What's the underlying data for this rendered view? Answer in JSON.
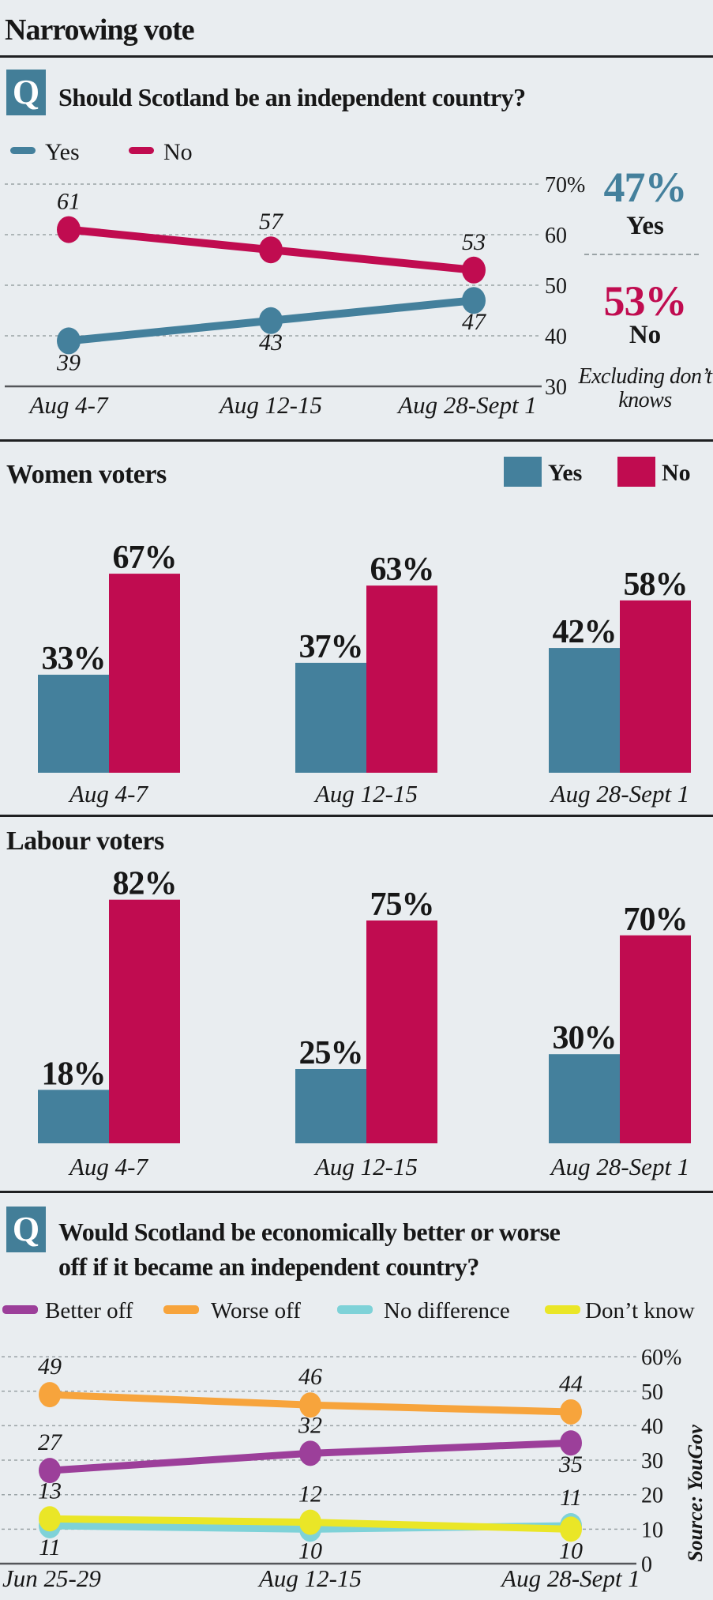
{
  "page": {
    "title": "Narrowing vote",
    "source": "Source: YouGov"
  },
  "colors": {
    "yes": "#44809c",
    "no": "#c00c50",
    "better_off": "#9c3f9a",
    "worse_off": "#f7a43c",
    "no_difference": "#7ed2d8",
    "dont_know": "#eae627",
    "badge": "#437e98",
    "grid": "#9aa3a6",
    "axis": "#54565a"
  },
  "q1": {
    "badge": "Q",
    "question": "Should Scotland be an independent country?",
    "legend": [
      {
        "label": "Yes"
      },
      {
        "label": "No"
      }
    ],
    "summary": {
      "yes_pct": "47%",
      "yes_label": "Yes",
      "no_pct": "53%",
      "no_label": "No",
      "note": "Excluding don’t knows"
    }
  },
  "women": {
    "heading": "Women voters",
    "legend": [
      {
        "label": "Yes"
      },
      {
        "label": "No"
      }
    ]
  },
  "labour": {
    "heading": "Labour voters"
  },
  "q2": {
    "badge": "Q",
    "question_line1": "Would Scotland be economically better or worse",
    "question_line2": "off if it became an independent country?",
    "legend": [
      {
        "label": "Better off"
      },
      {
        "label": "Worse off"
      },
      {
        "label": "No difference"
      },
      {
        "label": "Don’t know"
      }
    ]
  },
  "chart_data": [
    {
      "id": "referendum-trend",
      "type": "line",
      "title": "Should Scotland be an independent country?",
      "categories": [
        "Aug 4-7",
        "Aug 12-15",
        "Aug 28-Sept 1"
      ],
      "series": [
        {
          "name": "No",
          "color": "#c00c50",
          "values": [
            61,
            57,
            53
          ],
          "label_pos": [
            "above",
            "above",
            "above"
          ]
        },
        {
          "name": "Yes",
          "color": "#44809c",
          "values": [
            39,
            43,
            47
          ],
          "label_pos": [
            "below",
            "below",
            "below"
          ]
        }
      ],
      "ylim": [
        30,
        70
      ],
      "yticks": [
        30,
        40,
        50,
        60,
        70
      ],
      "ytick_labels": [
        "30",
        "40",
        "50",
        "60",
        "70%"
      ],
      "grid": "dashed",
      "axis_side": "right",
      "legend_position": "top-left",
      "note": "Excluding don’t knows",
      "final_summary": {
        "Yes": "47%",
        "No": "53%"
      }
    },
    {
      "id": "women-voters",
      "type": "bar",
      "title": "Women voters",
      "categories": [
        "Aug 4-7",
        "Aug 12-15",
        "Aug 28-Sept 1"
      ],
      "series": [
        {
          "name": "Yes",
          "color": "#44809c",
          "values": [
            33,
            37,
            42
          ],
          "labels": [
            "33%",
            "37%",
            "42%"
          ]
        },
        {
          "name": "No",
          "color": "#c00c50",
          "values": [
            67,
            63,
            58
          ],
          "labels": [
            "67%",
            "63%",
            "58%"
          ]
        }
      ],
      "ylim": [
        0,
        100
      ],
      "grid": "off"
    },
    {
      "id": "labour-voters",
      "type": "bar",
      "title": "Labour voters",
      "categories": [
        "Aug 4-7",
        "Aug 12-15",
        "Aug 28-Sept 1"
      ],
      "series": [
        {
          "name": "Yes",
          "color": "#44809c",
          "values": [
            18,
            25,
            30
          ],
          "labels": [
            "18%",
            "25%",
            "30%"
          ]
        },
        {
          "name": "No",
          "color": "#c00c50",
          "values": [
            82,
            75,
            70
          ],
          "labels": [
            "82%",
            "75%",
            "70%"
          ]
        }
      ],
      "ylim": [
        0,
        100
      ],
      "grid": "off"
    },
    {
      "id": "economy-trend",
      "type": "line",
      "title": "Would Scotland be economically better or worse off if it became an independent country?",
      "categories": [
        "Jun 25-29",
        "Aug 12-15",
        "Aug 28-Sept 1"
      ],
      "series": [
        {
          "name": "Worse off",
          "color": "#f7a43c",
          "values": [
            49,
            46,
            44
          ],
          "label_pos": [
            "above",
            "above",
            "above"
          ]
        },
        {
          "name": "Better off",
          "color": "#9c3f9a",
          "values": [
            27,
            32,
            35
          ],
          "label_pos": [
            "above",
            "above",
            "below"
          ]
        },
        {
          "name": "No difference",
          "color": "#7ed2d8",
          "values": [
            11,
            10,
            11
          ],
          "label_pos": [
            "below",
            "below",
            "above"
          ]
        },
        {
          "name": "Don’t know",
          "color": "#eae627",
          "values": [
            13,
            12,
            10
          ],
          "label_pos": [
            "above",
            "above",
            "below"
          ]
        }
      ],
      "ylim": [
        0,
        60
      ],
      "yticks": [
        0,
        10,
        20,
        30,
        40,
        50,
        60
      ],
      "ytick_labels": [
        "0",
        "10",
        "20",
        "30",
        "40",
        "50",
        "60%"
      ],
      "grid": "dashed",
      "axis_side": "right",
      "legend_position": "top"
    }
  ]
}
